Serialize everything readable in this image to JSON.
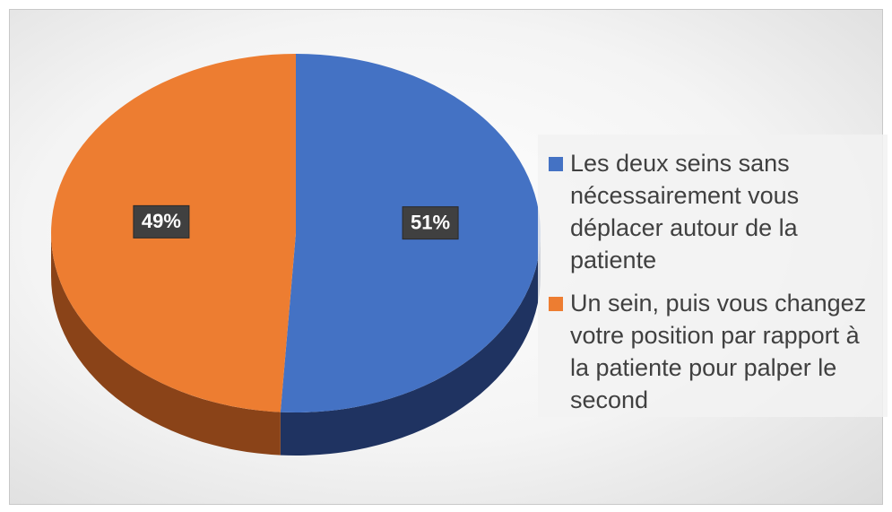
{
  "chart_data": {
    "type": "pie",
    "categories": [
      "Les deux seins sans nécessairement vous déplacer autour de la patiente",
      "Un sein, puis vous changez votre position par rapport à la patiente pour palper le second"
    ],
    "values": [
      51,
      49
    ],
    "value_labels": [
      "51%",
      "49%"
    ],
    "colors": [
      "#4472c4",
      "#ed7d31"
    ],
    "side_colors": [
      "#1f3361",
      "#8a4318"
    ],
    "legend": "right"
  }
}
